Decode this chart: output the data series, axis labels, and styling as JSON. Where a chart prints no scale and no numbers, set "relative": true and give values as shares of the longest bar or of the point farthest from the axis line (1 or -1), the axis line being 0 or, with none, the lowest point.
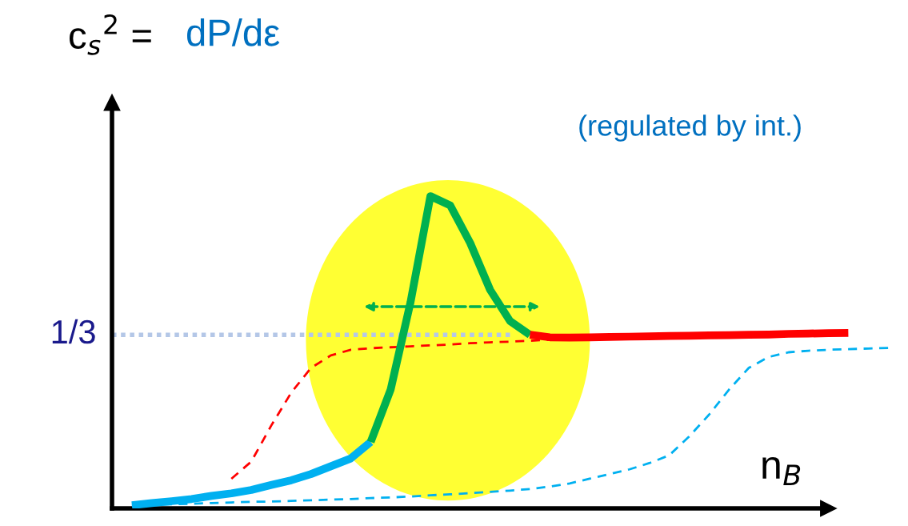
{
  "chart_data": {
    "type": "line",
    "relative": true,
    "ylabel": "c$_{s}$$^{2}$ =",
    "xlabel": "n$_{B}$",
    "annotations": [
      "dP/dε",
      "(regulated by int.)"
    ],
    "categories": [
      null,
      null,
      null,
      null,
      null,
      null,
      null,
      null,
      null,
      null,
      null,
      null,
      null,
      null,
      null,
      null,
      null,
      null,
      null,
      null,
      null,
      null,
      null,
      null,
      null,
      null,
      null,
      null,
      null,
      null,
      null,
      null,
      null,
      null,
      null,
      null,
      null,
      null,
      null,
      null,
      null
    ],
    "series": [
      {
        "name": "1/3",
        "color": "#b4c7e7",
        "line_style": "dotted",
        "values": [
          0.556,
          0.556,
          0.556,
          0.556,
          0.556,
          0.556,
          0.556,
          0.556,
          0.556,
          0.556,
          0.556,
          0.556,
          0.556,
          0.556,
          0.556,
          0.556,
          0.556,
          0.556,
          0.556,
          0.556,
          0.556,
          null,
          null,
          null,
          null,
          null,
          null,
          null,
          null,
          null,
          null,
          null,
          null,
          null,
          null,
          null,
          null,
          null,
          null,
          null,
          null
        ]
      },
      {
        "color": "#ff0000",
        "line_style": "dashed",
        "values": [
          null,
          null,
          null,
          null,
          null,
          null,
          0.095,
          0.15,
          0.265,
          0.37,
          0.45,
          0.49,
          0.508,
          0.513,
          0.516,
          0.519,
          0.522,
          0.525,
          0.529,
          0.532,
          0.534,
          0.537,
          0.54,
          0.542,
          0.543,
          0.544,
          0.545,
          0.546,
          0.548,
          0.549,
          0.55,
          0.551,
          null,
          null,
          null,
          null,
          null,
          null,
          null,
          null,
          null
        ]
      },
      {
        "color": "#00b0f0",
        "line_style": "dashed",
        "values": [
          null,
          0.01,
          0.012,
          0.013,
          0.015,
          0.017,
          0.019,
          0.021,
          0.022,
          0.024,
          0.026,
          0.028,
          0.03,
          0.033,
          0.035,
          0.038,
          0.042,
          0.045,
          0.049,
          0.053,
          0.057,
          0.062,
          0.07,
          0.08,
          0.095,
          0.11,
          0.125,
          0.145,
          0.17,
          0.23,
          0.3,
          0.38,
          0.45,
          0.485,
          0.5,
          0.505,
          0.508,
          0.51,
          0.512,
          0.514,
          null
        ]
      },
      {
        "color": "#00b0f0",
        "line_style": "solid",
        "values": [
          null,
          0.01,
          0.017,
          0.023,
          0.03,
          0.04,
          0.048,
          0.059,
          0.075,
          0.09,
          0.11,
          0.135,
          0.16,
          0.213,
          null,
          null,
          null,
          null,
          null,
          null,
          null,
          null,
          null,
          null,
          null,
          null,
          null,
          null,
          null,
          null,
          null,
          null,
          null,
          null,
          null,
          null,
          null,
          null,
          null,
          null,
          null
        ]
      },
      {
        "color": "#00b050",
        "line_style": "solid",
        "values": [
          null,
          null,
          null,
          null,
          null,
          null,
          null,
          null,
          null,
          null,
          null,
          null,
          null,
          0.213,
          0.38,
          0.66,
          1.0,
          0.97,
          0.85,
          0.7,
          0.6,
          0.556,
          null,
          null,
          null,
          null,
          null,
          null,
          null,
          null,
          null,
          null,
          null,
          null,
          null,
          null,
          null,
          null,
          null,
          null,
          null
        ]
      },
      {
        "color": "#ff0000",
        "line_style": "solid",
        "values": [
          null,
          null,
          null,
          null,
          null,
          null,
          null,
          null,
          null,
          null,
          null,
          null,
          null,
          null,
          null,
          null,
          null,
          null,
          null,
          null,
          null,
          0.556,
          0.548,
          0.547,
          0.548,
          0.549,
          0.55,
          0.551,
          0.552,
          0.553,
          0.554,
          0.555,
          0.556,
          0.557,
          0.559,
          0.56,
          0.561,
          0.562,
          null,
          null,
          null
        ]
      }
    ]
  }
}
